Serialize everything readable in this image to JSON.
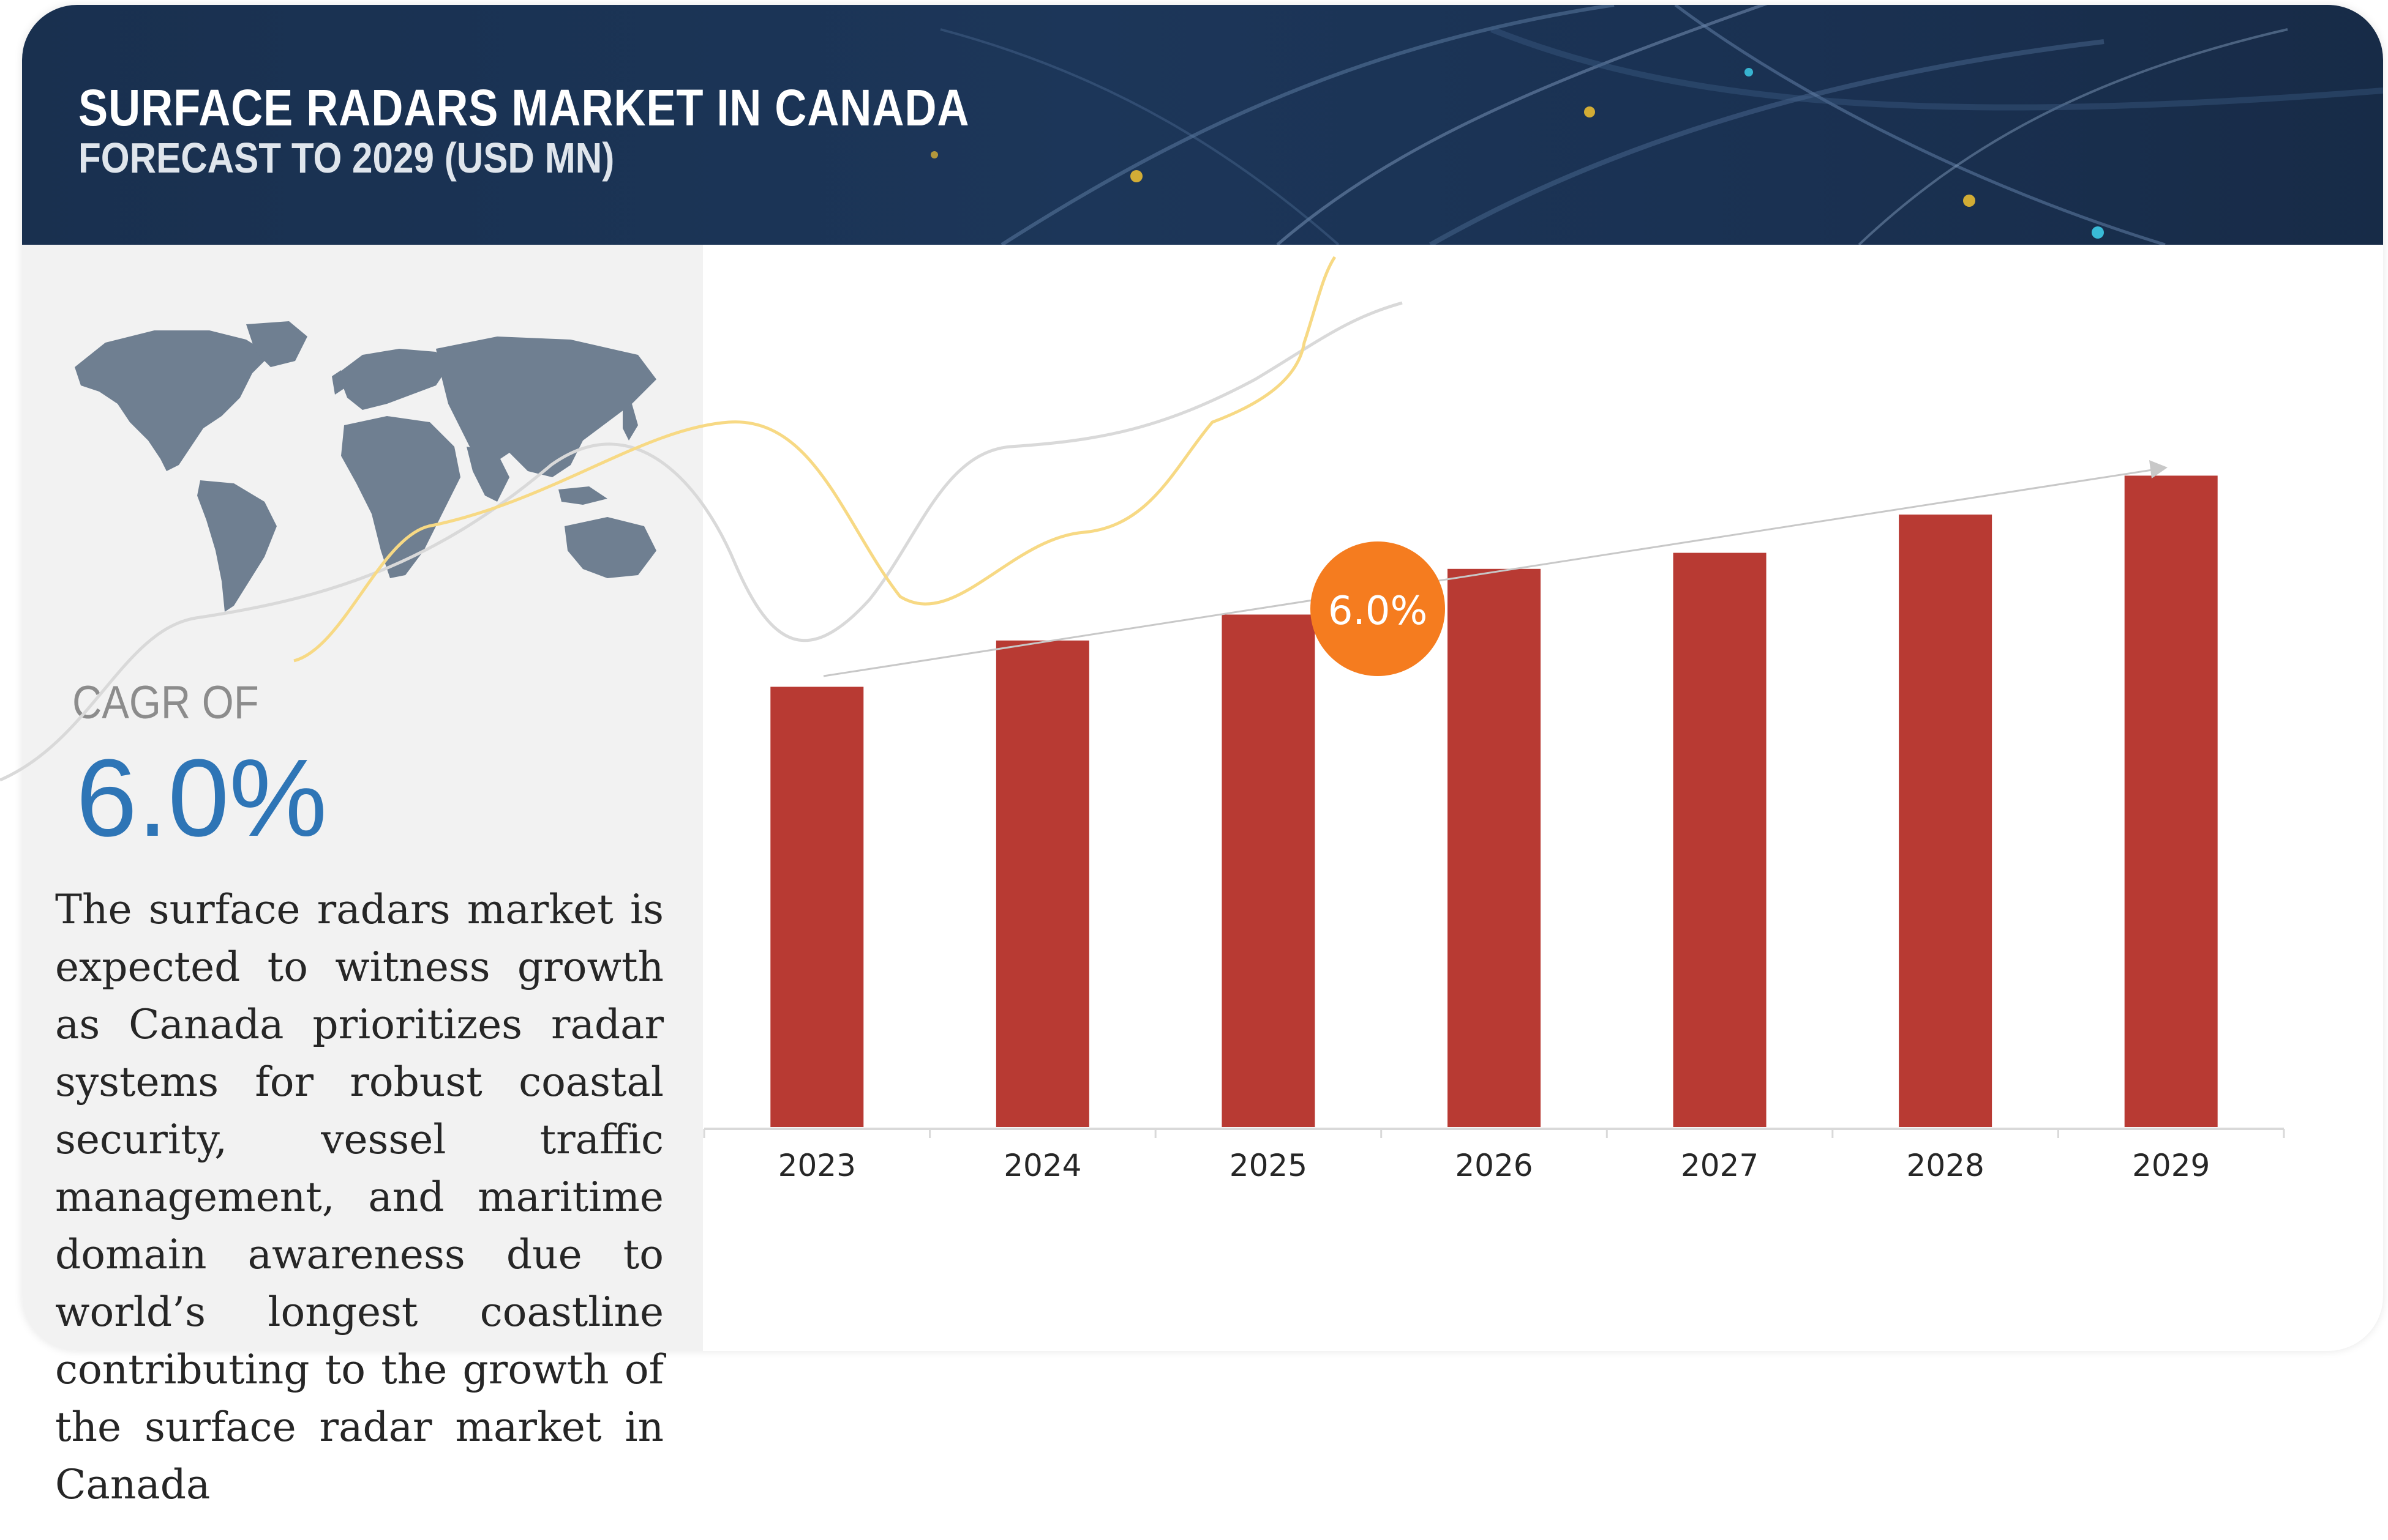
{
  "header": {
    "title": "SURFACE RADARS MARKET IN CANADA",
    "subtitle": "FORECAST TO 2029 (USD MN)"
  },
  "cagr": {
    "label": "CAGR OF",
    "value": "6.0%"
  },
  "description": "The surface radars market is expected to witness growth as Canada prioritizes radar systems for robust coastal security, vessel traffic management, and maritime domain awareness due to world’s longest coastline contributing to the growth of the surface radar market in Canada",
  "colors": {
    "header_bg": "#1c3659",
    "bar": "#b83a33",
    "cagr_text": "#2e75b6",
    "badge": "#f57c1f"
  },
  "chart_data": {
    "type": "bar",
    "title": "SURFACE RADARS MARKET IN CANADA",
    "subtitle": "FORECAST TO 2029 (USD MN)",
    "categories": [
      "2023",
      "2024",
      "2025",
      "2026",
      "2027",
      "2028",
      "2029"
    ],
    "values": [
      713,
      788,
      830,
      904,
      930,
      992,
      1055
    ],
    "ylim": [
      0,
      1100
    ],
    "xlabel": "",
    "ylabel": "",
    "grid": false,
    "trend_annotation": "6.0%"
  }
}
